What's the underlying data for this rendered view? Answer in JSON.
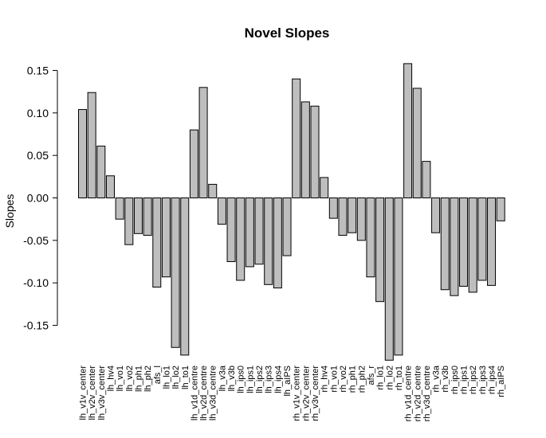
{
  "chart_data": {
    "type": "bar",
    "title": "Novel Slopes",
    "xlabel": "",
    "ylabel": "Slopes",
    "ylim": [
      -0.175,
      0.165
    ],
    "yticks": [
      0.15,
      0.1,
      0.05,
      0.0,
      -0.05,
      -0.1,
      -0.15
    ],
    "ytick_labels": [
      "0.15",
      "0.10",
      "0.05",
      "0.00",
      "-0.05",
      "-0.10",
      "-0.15"
    ],
    "grid": false,
    "bar_color": "#bebebe",
    "categories": [
      "lh_v1v_center",
      "lh_v2v_center",
      "lh_v3v_center",
      "lh_hv4",
      "lh_vo1",
      "lh_vo2",
      "lh_ph1",
      "lh_ph2",
      "afs_l",
      "lh_lo1",
      "lh_lo2",
      "lh_to1",
      "lh_v1d_centre",
      "lh_v2d_centre",
      "lh_v3d_centre",
      "lh_v3a",
      "lh_v3b",
      "lh_ips0",
      "lh_ips1",
      "lh_ips2",
      "lh_ips3",
      "lh_ips4",
      "lh_aIPS",
      "rh_v1v_center",
      "rh_v2v_center",
      "rh_v3v_center",
      "rh_hv4",
      "rh_vo1",
      "rh_vo2",
      "rh_ph1",
      "rh_ph2",
      "afs_r",
      "rh_lo1",
      "rh_lo2",
      "rh_to1",
      "rh_v1d_centre",
      "rh_v2d_centre",
      "rh_v3d_centre",
      "rh_v3a",
      "rh_v3b",
      "rh_ips0",
      "rh_ips1",
      "rh_ips2",
      "rh_ips3",
      "rh_ips4",
      "rh_aIPS"
    ],
    "values": [
      0.104,
      0.124,
      0.061,
      0.026,
      -0.025,
      -0.055,
      -0.042,
      -0.044,
      -0.105,
      -0.093,
      -0.176,
      -0.185,
      0.08,
      0.13,
      0.016,
      -0.031,
      -0.075,
      -0.097,
      -0.081,
      -0.078,
      -0.102,
      -0.106,
      -0.068,
      0.14,
      0.113,
      0.108,
      0.024,
      -0.024,
      -0.044,
      -0.041,
      -0.05,
      -0.093,
      -0.122,
      -0.191,
      -0.185,
      0.158,
      0.129,
      0.043,
      -0.041,
      -0.108,
      -0.115,
      -0.104,
      -0.111,
      -0.097,
      -0.103,
      -0.027
    ]
  }
}
